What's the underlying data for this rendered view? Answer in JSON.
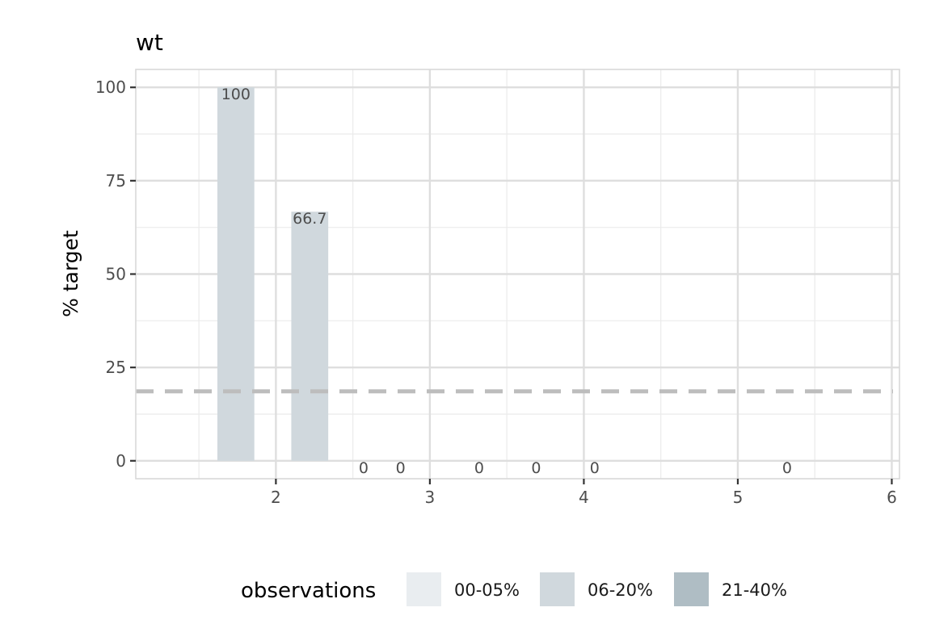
{
  "colors": {
    "panel_border": "#d9d9d9",
    "grid_major": "#dedede",
    "grid_minor": "#ebebeb",
    "bar_fill": "#d0d8dd",
    "reference_line": "#bdbdbd",
    "legend_fill": [
      "#e9edf0",
      "#d0d8dd",
      "#afbdc4"
    ]
  },
  "chart_data": {
    "type": "bar",
    "title": "wt",
    "xlabel": "",
    "ylabel": "% target",
    "xlim": [
      1.09,
      6.05
    ],
    "ylim": [
      -4.8,
      104.8
    ],
    "x_ticks": [
      2,
      3,
      4,
      5,
      6
    ],
    "x_tick_labels": [
      "2",
      "3",
      "4",
      "5",
      "6"
    ],
    "y_ticks": [
      0,
      25,
      50,
      75,
      100
    ],
    "y_tick_labels": [
      "0",
      "25",
      "50",
      "75",
      "100"
    ],
    "grid": true,
    "reference_line": {
      "y": 18.6,
      "style": "dashed"
    },
    "bars": [
      {
        "x": 1.74,
        "width": 0.24,
        "value": 100,
        "label": "100",
        "fill": "06-20%"
      },
      {
        "x": 2.22,
        "width": 0.24,
        "value": 66.7,
        "label": "66.7",
        "fill": "06-20%"
      },
      {
        "x": 2.57,
        "width": 0.24,
        "value": 0,
        "label": "0",
        "fill": "06-20%"
      },
      {
        "x": 2.81,
        "width": 0.24,
        "value": 0,
        "label": "0",
        "fill": "06-20%"
      },
      {
        "x": 3.32,
        "width": 0.24,
        "value": 0,
        "label": "0",
        "fill": "06-20%"
      },
      {
        "x": 3.69,
        "width": 0.24,
        "value": 0,
        "label": "0",
        "fill": "06-20%"
      },
      {
        "x": 4.07,
        "width": 0.24,
        "value": 0,
        "label": "0",
        "fill": "06-20%"
      },
      {
        "x": 5.32,
        "width": 0.24,
        "value": 0,
        "label": "0",
        "fill": "06-20%"
      }
    ],
    "legend": {
      "title": "observations",
      "position": "bottom",
      "entries": [
        "00-05%",
        "06-20%",
        "21-40%"
      ]
    }
  }
}
